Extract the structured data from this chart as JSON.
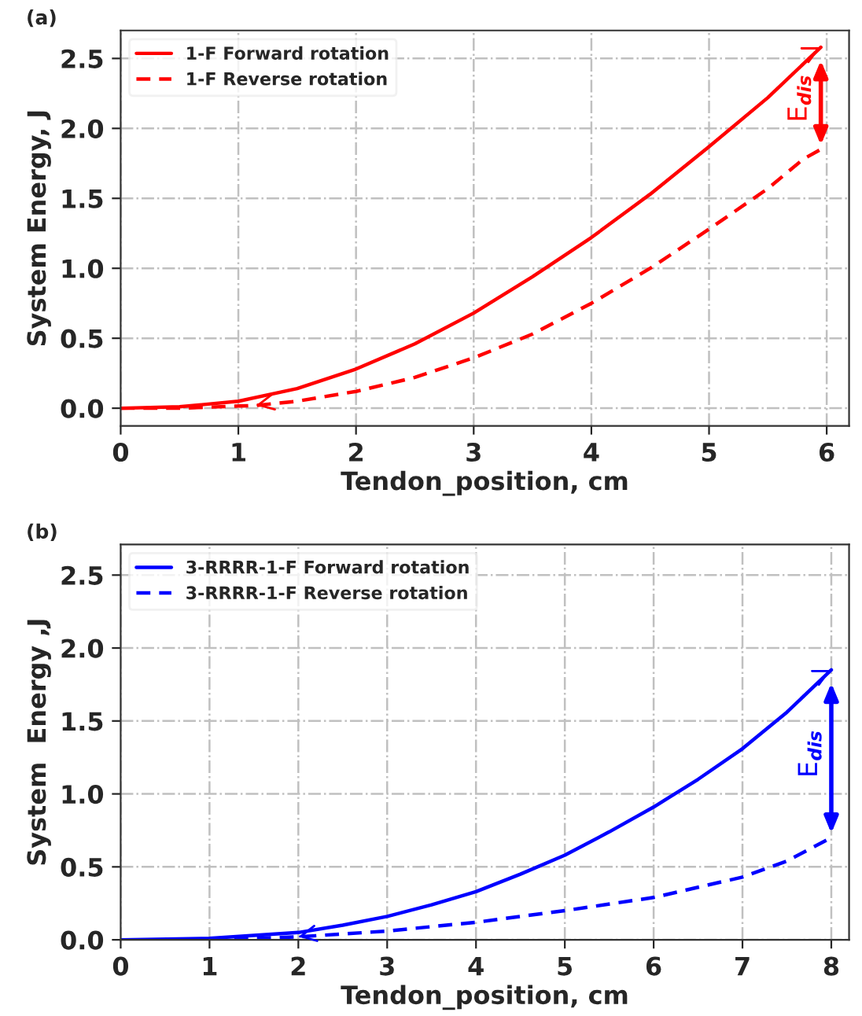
{
  "chart_data": [
    {
      "type": "line",
      "title": "(a)",
      "xlabel": "Tendon_position, cm",
      "ylabel": "System Energy, J",
      "xlim": [
        0,
        6.19
      ],
      "ylim": [
        -0.126,
        2.7
      ],
      "xticks": [
        0,
        1,
        2,
        3,
        4,
        5,
        6
      ],
      "yticks": [
        {
          "value": 0,
          "label": "0.0"
        },
        {
          "value": 0.5,
          "label": "0.5"
        },
        {
          "value": 1,
          "label": "1.0"
        },
        {
          "value": 1.5,
          "label": "1.5"
        },
        {
          "value": 2,
          "label": "2.0"
        },
        {
          "value": 2.5,
          "label": "2.5"
        }
      ],
      "grid": true,
      "legend": "top left",
      "annotations": [
        "E$_{dis}$"
      ],
      "series": [
        {
          "name": "1-F Forward rotation",
          "color": "#ff0000",
          "line_style": "solid",
          "x": [
            0,
            0.5,
            1,
            1.5,
            2,
            2.5,
            3,
            3.5,
            4,
            4.5,
            5,
            5.5,
            5.95
          ],
          "values": [
            0,
            0.01,
            0.05,
            0.14,
            0.28,
            0.46,
            0.68,
            0.94,
            1.22,
            1.53,
            1.87,
            2.22,
            2.58
          ]
        },
        {
          "name": "1-F Reverse rotation",
          "color": "#ff0000",
          "line_style": "dashed",
          "x": [
            0,
            0.5,
            1.15,
            1.5,
            2,
            2.5,
            3,
            3.5,
            4,
            4.5,
            5,
            5.5,
            5.8,
            5.95
          ],
          "values": [
            0,
            0,
            0.02,
            0.05,
            0.12,
            0.22,
            0.36,
            0.53,
            0.75,
            1.0,
            1.28,
            1.57,
            1.78,
            1.85
          ]
        }
      ]
    },
    {
      "type": "line",
      "title": "(b)",
      "xlabel": "Tendon_position, cm",
      "ylabel": "System  Energy ,J",
      "xlim": [
        0,
        8.2
      ],
      "ylim": [
        0,
        2.71
      ],
      "xticks": [
        0,
        1,
        2,
        3,
        4,
        5,
        6,
        7,
        8
      ],
      "yticks": [
        {
          "value": 0,
          "label": "0.0"
        },
        {
          "value": 0.5,
          "label": "0.5"
        },
        {
          "value": 1,
          "label": "1.0"
        },
        {
          "value": 1.5,
          "label": "1.5"
        },
        {
          "value": 2,
          "label": "2.0"
        },
        {
          "value": 2.5,
          "label": "2.5"
        }
      ],
      "grid": true,
      "legend": "top left",
      "annotations": [
        "E$_{dis}$"
      ],
      "series": [
        {
          "name": "3-RRRR-1-F Forward rotation",
          "color": "#0000ff",
          "line_style": "solid",
          "x": [
            0,
            1,
            1.5,
            2,
            2.5,
            3,
            3.5,
            4,
            4.5,
            5,
            5.5,
            6,
            6.5,
            7,
            7.5,
            8
          ],
          "values": [
            0,
            0.01,
            0.03,
            0.05,
            0.1,
            0.16,
            0.24,
            0.33,
            0.45,
            0.58,
            0.74,
            0.91,
            1.1,
            1.31,
            1.56,
            1.85
          ]
        },
        {
          "name": "3-RRRR-1-F Reverse rotation",
          "color": "#0000ff",
          "line_style": "dashed",
          "x": [
            0,
            1,
            2,
            2.75,
            3,
            4,
            5,
            6,
            7,
            7.5,
            8
          ],
          "values": [
            0,
            0,
            0.02,
            0.05,
            0.06,
            0.12,
            0.2,
            0.29,
            0.43,
            0.54,
            0.7
          ]
        }
      ]
    }
  ]
}
